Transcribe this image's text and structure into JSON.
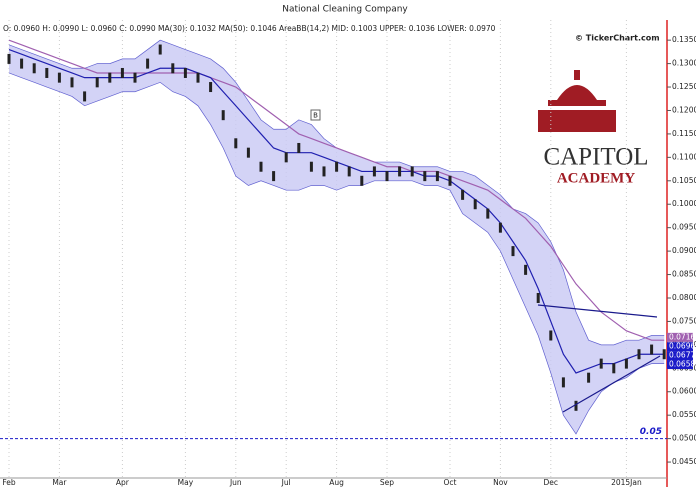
{
  "chart_data": {
    "type": "stock",
    "title": "National Cleaning Company",
    "info": "O: 0.0960 H: 0.0990 L: 0.0960 C: 0.0990 MA(30): 0.1032 MA(50): 0.1046 AreaBB(14,2) MID: 0.1003 UPPER: 0.1036 LOWER: 0.0970",
    "watermark": "© TickerChart.com",
    "logo": [
      "CAPITOL",
      "ACADEMY"
    ],
    "annotation": "B",
    "level": {
      "value": 0.05,
      "label": "0.05",
      "color": "#1a1ac8"
    },
    "categories": [
      "Feb",
      null,
      null,
      null,
      "Mar",
      null,
      null,
      null,
      null,
      "Apr",
      null,
      null,
      null,
      null,
      "May",
      null,
      null,
      null,
      "Jun",
      null,
      null,
      null,
      "Jul",
      null,
      null,
      null,
      "Aug",
      null,
      null,
      null,
      "Sep",
      null,
      null,
      null,
      null,
      "Oct",
      null,
      null,
      null,
      "Nov",
      null,
      null,
      null,
      "Dec",
      null,
      null,
      null,
      null,
      null,
      "2015Jan",
      null,
      null,
      null
    ],
    "series": [
      {
        "name": "Close",
        "color": "#222222",
        "values": [
          0.131,
          0.13,
          0.129,
          0.128,
          0.127,
          0.126,
          0.123,
          0.126,
          0.127,
          0.128,
          0.127,
          0.13,
          0.133,
          0.129,
          0.128,
          0.127,
          0.125,
          0.119,
          0.113,
          0.111,
          0.108,
          0.106,
          0.11,
          0.112,
          0.108,
          0.107,
          0.108,
          0.107,
          0.105,
          0.107,
          0.106,
          0.107,
          0.107,
          0.106,
          0.106,
          0.105,
          0.102,
          0.1,
          0.098,
          0.095,
          0.09,
          0.086,
          0.08,
          0.072,
          0.062,
          0.057,
          0.063,
          0.066,
          0.065,
          0.066,
          0.068,
          0.069,
          0.068
        ]
      },
      {
        "name": "MA(30)",
        "color": "#2020b0",
        "values": [
          0.133,
          0.132,
          0.131,
          0.13,
          0.129,
          0.128,
          0.127,
          0.127,
          0.127,
          0.127,
          0.127,
          0.128,
          0.129,
          0.129,
          0.129,
          0.128,
          0.127,
          0.124,
          0.121,
          0.118,
          0.115,
          0.112,
          0.111,
          0.111,
          0.111,
          0.11,
          0.109,
          0.108,
          0.107,
          0.107,
          0.107,
          0.107,
          0.107,
          0.106,
          0.106,
          0.105,
          0.103,
          0.101,
          0.099,
          0.096,
          0.092,
          0.088,
          0.082,
          0.075,
          0.068,
          0.064,
          0.065,
          0.066,
          0.066,
          0.067,
          0.068,
          0.068,
          0.068
        ]
      },
      {
        "name": "MA(50)",
        "color": "#a060b0",
        "values": [
          0.135,
          0.134,
          0.133,
          0.132,
          0.131,
          0.13,
          0.129,
          0.128,
          0.128,
          0.128,
          0.128,
          0.128,
          0.128,
          0.128,
          0.128,
          0.128,
          0.127,
          0.126,
          0.125,
          0.123,
          0.121,
          0.119,
          0.117,
          0.115,
          0.114,
          0.113,
          0.112,
          0.111,
          0.11,
          0.109,
          0.108,
          0.108,
          0.107,
          0.107,
          0.107,
          0.106,
          0.105,
          0.104,
          0.103,
          0.101,
          0.099,
          0.097,
          0.094,
          0.091,
          0.087,
          0.083,
          0.08,
          0.077,
          0.075,
          0.073,
          0.072,
          0.071,
          0.071
        ]
      },
      {
        "name": "UPPER",
        "color": "#6060d0",
        "values": [
          0.134,
          0.133,
          0.132,
          0.131,
          0.13,
          0.129,
          0.129,
          0.13,
          0.13,
          0.131,
          0.131,
          0.133,
          0.135,
          0.134,
          0.133,
          0.132,
          0.131,
          0.129,
          0.126,
          0.122,
          0.118,
          0.116,
          0.116,
          0.118,
          0.117,
          0.114,
          0.112,
          0.111,
          0.11,
          0.109,
          0.109,
          0.109,
          0.108,
          0.108,
          0.108,
          0.107,
          0.107,
          0.106,
          0.104,
          0.102,
          0.099,
          0.098,
          0.096,
          0.092,
          0.086,
          0.077,
          0.071,
          0.07,
          0.07,
          0.071,
          0.071,
          0.072,
          0.072
        ]
      },
      {
        "name": "LOWER",
        "color": "#6060d0",
        "values": [
          0.128,
          0.127,
          0.126,
          0.125,
          0.124,
          0.123,
          0.121,
          0.122,
          0.123,
          0.124,
          0.124,
          0.125,
          0.126,
          0.124,
          0.123,
          0.121,
          0.117,
          0.112,
          0.106,
          0.104,
          0.105,
          0.104,
          0.103,
          0.103,
          0.104,
          0.104,
          0.103,
          0.104,
          0.104,
          0.105,
          0.105,
          0.105,
          0.105,
          0.104,
          0.104,
          0.103,
          0.098,
          0.096,
          0.094,
          0.09,
          0.084,
          0.078,
          0.072,
          0.064,
          0.055,
          0.051,
          0.056,
          0.06,
          0.062,
          0.063,
          0.065,
          0.066,
          0.066
        ]
      }
    ],
    "band_fill": "#c8c8f4",
    "price_tags": [
      {
        "value": 0.0716,
        "label": "0.0716",
        "color": "#a060b0"
      },
      {
        "value": 0.0696,
        "label": "0.0696",
        "color": "#1a1ac8"
      },
      {
        "value": 0.0677,
        "label": "0.0677",
        "color": "#1a1ac8"
      },
      {
        "value": 0.0658,
        "label": "0.0658",
        "color": "#1a1ac8"
      }
    ],
    "ylim": [
      0.0416,
      0.1393
    ],
    "yticks": [
      {
        "value": 0.045,
        "label": "0.0450"
      },
      {
        "value": 0.05,
        "label": "0.0500"
      },
      {
        "value": 0.055,
        "label": "0.0550"
      },
      {
        "value": 0.06,
        "label": "0.0600"
      },
      {
        "value": 0.065,
        "label": "0.0650"
      },
      {
        "value": 0.07,
        "label": "0.0700"
      },
      {
        "value": 0.075,
        "label": "0.0750"
      },
      {
        "value": 0.08,
        "label": "0.0800"
      },
      {
        "value": 0.085,
        "label": "0.0850"
      },
      {
        "value": 0.09,
        "label": "0.0900"
      },
      {
        "value": 0.095,
        "label": "0.0950"
      },
      {
        "value": 0.1,
        "label": "0.1000"
      },
      {
        "value": 0.105,
        "label": "0.1050"
      },
      {
        "value": 0.11,
        "label": "0.1100"
      },
      {
        "value": 0.115,
        "label": "0.1150"
      },
      {
        "value": 0.12,
        "label": "0.1200"
      },
      {
        "value": 0.125,
        "label": "0.1250"
      },
      {
        "value": 0.13,
        "label": "0.1300"
      },
      {
        "value": 0.135,
        "label": "0.1350"
      }
    ]
  }
}
